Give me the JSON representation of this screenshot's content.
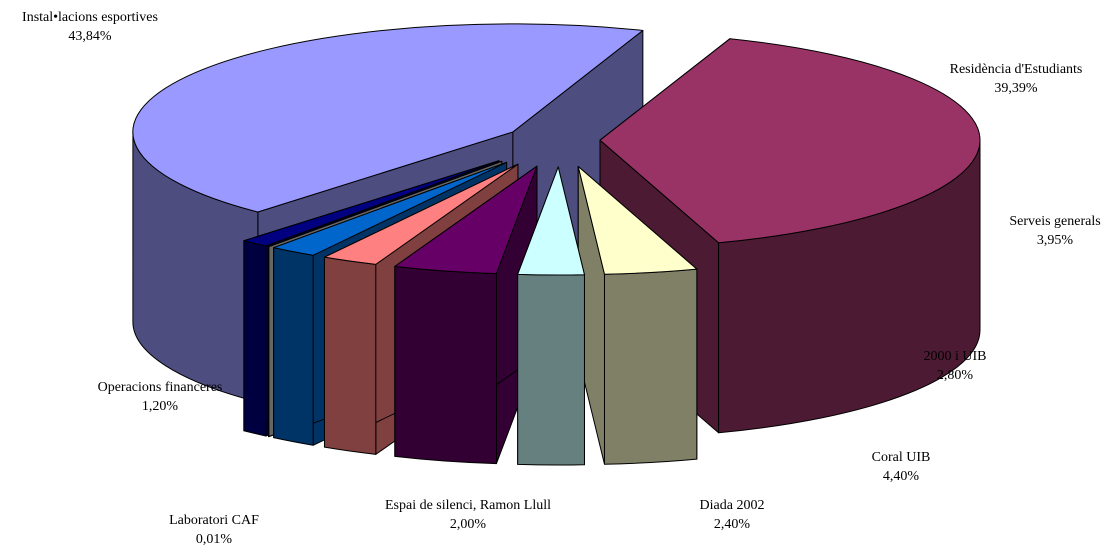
{
  "chart_data": {
    "type": "pie",
    "style": "3d-exploded",
    "title": "",
    "slices": [
      {
        "label": "Residència d'Estudiants",
        "value": 39.39,
        "display": "39,39%",
        "color": "#993366",
        "side": "#4d1a33"
      },
      {
        "label": "Serveis generals",
        "value": 3.95,
        "display": "3,95%",
        "color": "#ffffcc",
        "side": "#808066"
      },
      {
        "label": "2000 i UIB",
        "value": 2.8,
        "display": "2,80%",
        "color": "#ccffff",
        "side": "#668080"
      },
      {
        "label": "Coral UIB",
        "value": 4.4,
        "display": "4,40%",
        "color": "#660066",
        "side": "#330033"
      },
      {
        "label": "Diada 2002",
        "value": 2.4,
        "display": "2,40%",
        "color": "#ff8080",
        "side": "#804040"
      },
      {
        "label": "Espai de silenci, Ramon Llull",
        "value": 2.0,
        "display": "2,00%",
        "color": "#0066cc",
        "side": "#003366"
      },
      {
        "label": "Laboratori CAF",
        "value": 0.01,
        "display": "0,01%",
        "color": "#cccccc",
        "side": "#666666"
      },
      {
        "label": "Operacions financeres",
        "value": 1.2,
        "display": "1,20%",
        "color": "#000080",
        "side": "#000040"
      },
      {
        "label": "Instal•lacions esportives",
        "value": 43.84,
        "display": "43,84%",
        "color": "#9999ff",
        "side": "#4d4d80"
      }
    ]
  }
}
